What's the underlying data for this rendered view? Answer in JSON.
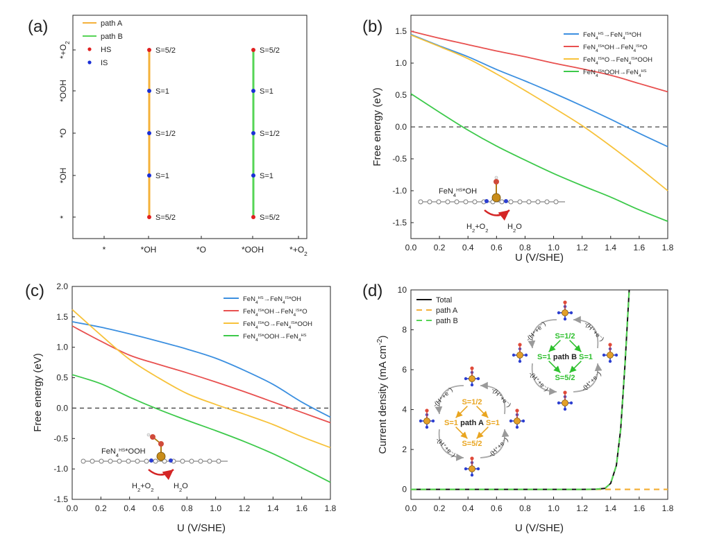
{
  "panels": {
    "a": {
      "label": "(a)",
      "y_ticks": [
        "*",
        "*OH",
        "*O",
        "*OOH",
        "*+O2"
      ],
      "x_ticks": [
        "*",
        "*OH",
        "*O",
        "*OOH",
        "*+O2"
      ],
      "legend": [
        "path A",
        "path B",
        "HS",
        "IS"
      ],
      "colors": {
        "pathA": "#f4b13a",
        "pathB": "#55d455",
        "HS": "#e02020",
        "IS": "#1a2fd6"
      },
      "pathA": {
        "x_pos": 1,
        "points": [
          {
            "level": 0,
            "spin": "S=5/2",
            "state": "HS"
          },
          {
            "level": 1,
            "spin": "S=1",
            "state": "IS"
          },
          {
            "level": 2,
            "spin": "S=1/2",
            "state": "IS"
          },
          {
            "level": 3,
            "spin": "S=1",
            "state": "IS"
          },
          {
            "level": 4,
            "spin": "S=5/2",
            "state": "HS"
          }
        ]
      },
      "pathB": {
        "x_pos": 3,
        "points": [
          {
            "level": 0,
            "spin": "S=5/2",
            "state": "HS"
          },
          {
            "level": 1,
            "spin": "S=1",
            "state": "IS"
          },
          {
            "level": 2,
            "spin": "S=1/2",
            "state": "IS"
          },
          {
            "level": 3,
            "spin": "S=1",
            "state": "IS"
          },
          {
            "level": 4,
            "spin": "S=5/2",
            "state": "HS"
          }
        ]
      }
    },
    "b": {
      "label": "(b)",
      "xlabel": "U (V/SHE)",
      "ylabel": "Free energy (eV)",
      "inset": {
        "species": "FeN4HS*OH",
        "reaction_left": "H2+O2",
        "reaction_right": "H2O"
      }
    },
    "c": {
      "label": "(c)",
      "xlabel": "U (V/SHE)",
      "ylabel": "Free energy (eV)",
      "inset": {
        "species": "FeN4HS*OOH",
        "reaction_left": "H2+O2",
        "reaction_right": "H2O"
      }
    },
    "d": {
      "label": "(d)",
      "xlabel": "U (V/SHE)",
      "ylabel": "Current density (mA cm-2)",
      "cycleA": {
        "name": "path A",
        "top": "S=1/2",
        "left": "S=1",
        "right": "S=1",
        "bottom": "S=5/2",
        "step": "-(H⁺+e⁻)"
      },
      "cycleB": {
        "name": "path B",
        "top": "S=1/2",
        "left": "S=1",
        "right": "S=1",
        "bottom": "S=5/2",
        "step": "-(H⁺+e⁻)"
      }
    }
  },
  "chart_data": [
    {
      "type": "line",
      "panel": "b",
      "title": "",
      "xlabel": "U (V/SHE)",
      "ylabel": "Free energy (eV)",
      "xlim": [
        0,
        1.8
      ],
      "ylim": [
        -1.75,
        1.75
      ],
      "xticks": [
        0.0,
        0.2,
        0.4,
        0.6,
        0.8,
        1.0,
        1.2,
        1.4,
        1.6,
        1.8
      ],
      "yticks": [
        -1.5,
        -1.0,
        -0.5,
        0.0,
        0.5,
        1.0,
        1.5
      ],
      "reference_line": 0.0,
      "legend_position": "top-right",
      "x": [
        0.0,
        0.2,
        0.4,
        0.6,
        0.8,
        1.0,
        1.2,
        1.4,
        1.6,
        1.8
      ],
      "series": [
        {
          "name": "FeN4HS→FeN4IS*OH",
          "color": "#3b8fe0",
          "values": [
            1.45,
            1.27,
            1.1,
            0.9,
            0.72,
            0.53,
            0.33,
            0.12,
            -0.1,
            -0.31
          ]
        },
        {
          "name": "FeN4IS*OH→FeN4IS*O",
          "color": "#e8504f",
          "values": [
            1.5,
            1.39,
            1.29,
            1.19,
            1.1,
            1.0,
            0.91,
            0.81,
            0.68,
            0.55
          ]
        },
        {
          "name": "FeN4IS*O→FeN4IS*OOH",
          "color": "#f7c23a",
          "values": [
            1.44,
            1.26,
            1.07,
            0.83,
            0.57,
            0.3,
            0.02,
            -0.3,
            -0.64,
            -1.0
          ]
        },
        {
          "name": "FeN4IS*OOH→FeN4HS",
          "color": "#3cc94a",
          "values": [
            0.52,
            0.23,
            -0.05,
            -0.3,
            -0.52,
            -0.73,
            -0.92,
            -1.1,
            -1.3,
            -1.48
          ]
        }
      ]
    },
    {
      "type": "line",
      "panel": "c",
      "title": "",
      "xlabel": "U (V/SHE)",
      "ylabel": "Free energy (eV)",
      "xlim": [
        0,
        1.8
      ],
      "ylim": [
        -1.5,
        2.0
      ],
      "xticks": [
        0.0,
        0.2,
        0.4,
        0.6,
        0.8,
        1.0,
        1.2,
        1.4,
        1.6,
        1.8
      ],
      "yticks": [
        -1.5,
        -1.0,
        -0.5,
        0.0,
        0.5,
        1.0,
        1.5,
        2.0
      ],
      "reference_line": 0.0,
      "legend_position": "top-right",
      "x": [
        0.0,
        0.2,
        0.4,
        0.6,
        0.8,
        1.0,
        1.2,
        1.4,
        1.6,
        1.8
      ],
      "series": [
        {
          "name": "FeN4HS→FeN4IS*OH",
          "color": "#3b8fe0",
          "values": [
            1.42,
            1.33,
            1.22,
            1.1,
            0.97,
            0.82,
            0.62,
            0.39,
            0.1,
            -0.15
          ]
        },
        {
          "name": "FeN4IS*OH→FeN4IS*O",
          "color": "#e8504f",
          "values": [
            1.35,
            1.1,
            0.87,
            0.72,
            0.58,
            0.43,
            0.27,
            0.1,
            -0.07,
            -0.24
          ]
        },
        {
          "name": "FeN4IS*O→FeN4IS*OOH",
          "color": "#f7c23a",
          "values": [
            1.62,
            1.2,
            0.8,
            0.5,
            0.24,
            0.06,
            -0.1,
            -0.27,
            -0.47,
            -0.65
          ]
        },
        {
          "name": "FeN4IS*OOH→FeN4HS",
          "color": "#3cc94a",
          "values": [
            0.55,
            0.4,
            0.18,
            -0.02,
            -0.2,
            -0.37,
            -0.55,
            -0.75,
            -0.98,
            -1.22
          ]
        }
      ]
    },
    {
      "type": "line",
      "panel": "d",
      "title": "",
      "xlabel": "U (V/SHE)",
      "ylabel": "Current density (mA cm-2)",
      "xlim": [
        0,
        1.8
      ],
      "ylim": [
        -0.5,
        10
      ],
      "xticks": [
        0.0,
        0.2,
        0.4,
        0.6,
        0.8,
        1.0,
        1.2,
        1.4,
        1.6,
        1.8
      ],
      "yticks": [
        0,
        2,
        4,
        6,
        8,
        10
      ],
      "legend_position": "top-left",
      "x": [
        0.0,
        0.2,
        0.4,
        0.6,
        0.8,
        1.0,
        1.2,
        1.3,
        1.36,
        1.4,
        1.44,
        1.47,
        1.5,
        1.53
      ],
      "series": [
        {
          "name": "Total",
          "color": "#111111",
          "dash": "solid",
          "values": [
            0,
            0,
            0,
            0,
            0,
            0,
            0,
            0.01,
            0.05,
            0.3,
            1.2,
            3.0,
            6.2,
            10.0
          ]
        },
        {
          "name": "path A",
          "color": "#f4b13a",
          "dash": "dashed",
          "values": [
            0,
            0,
            0,
            0,
            0,
            0,
            0,
            0,
            0,
            0,
            0,
            0,
            0,
            0
          ]
        },
        {
          "name": "path B",
          "color": "#55d455",
          "dash": "dashed",
          "values": [
            0,
            0,
            0,
            0,
            0,
            0,
            0,
            0.01,
            0.05,
            0.3,
            1.2,
            3.0,
            6.2,
            10.0
          ]
        }
      ],
      "extra_series_note": "path A continues at 0 to U=1.8"
    }
  ]
}
